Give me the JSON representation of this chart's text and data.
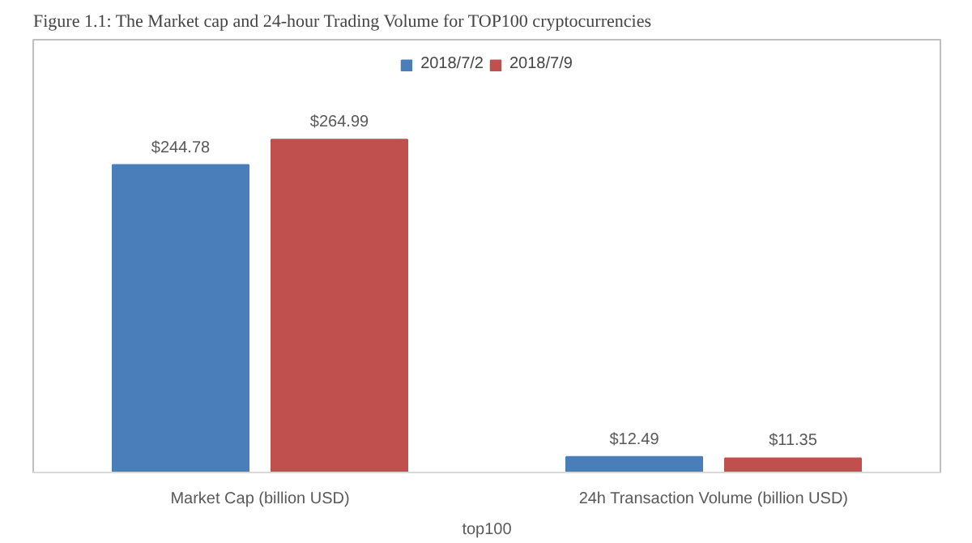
{
  "chart_data": {
    "type": "bar",
    "title": "Figure 1.1: The Market cap and 24-hour Trading Volume for TOP100 cryptocurrencies",
    "categories": [
      "Market Cap (billion USD)",
      "24h Transaction Volume (billion USD)"
    ],
    "xlabel": "top100",
    "series": [
      {
        "name": "2018/7/2",
        "color": "#4a7ebb",
        "values": [
          244.78,
          12.49
        ],
        "value_labels": [
          "$244.78",
          "$12.49"
        ]
      },
      {
        "name": "2018/7/9",
        "color": "#c0504d",
        "values": [
          264.99,
          11.35
        ],
        "value_labels": [
          "$264.99",
          "$11.35"
        ]
      }
    ],
    "legend": "top"
  }
}
